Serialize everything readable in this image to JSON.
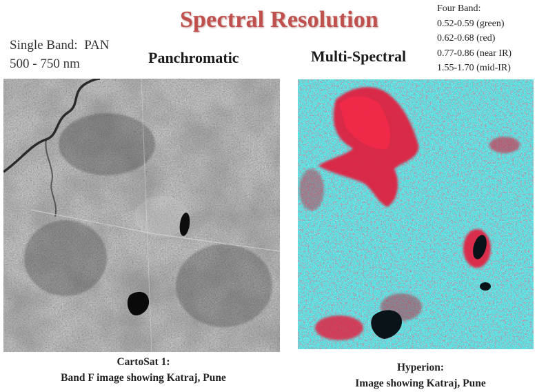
{
  "title": "Spectral Resolution",
  "single_band": {
    "line1": "Single Band:  PAN",
    "line2": "500 - 750 nm"
  },
  "four_band": {
    "heading": "Four Band:",
    "bands": [
      "0.52-0.59 (green)",
      "0.62-0.68 (red)",
      "0.77-0.86 (near IR)",
      "1.55-1.70 (mid-IR)"
    ]
  },
  "panchromatic": {
    "heading": "Panchromatic",
    "caption_line1": "CartoSat 1:",
    "caption_line2": "Band F image showing Katraj, Pune"
  },
  "multispectral": {
    "heading": "Multi-Spectral",
    "caption_line1": "Hyperion:",
    "caption_line2": "Image showing Katraj, Pune"
  },
  "colors": {
    "title": "#c0504d",
    "ms_vegetation_red": "#e01e3c",
    "ms_urban_cyan": "#3fe4e4",
    "pan_gray": "#8a8a8a"
  }
}
